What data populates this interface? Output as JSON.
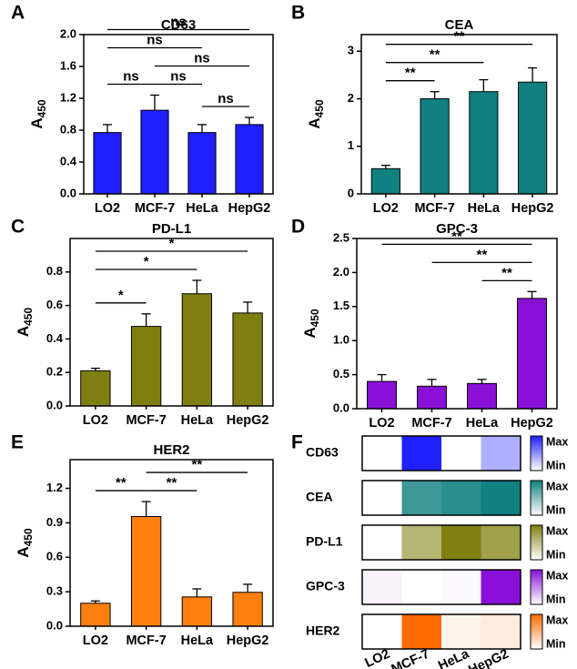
{
  "chart_data": [
    {
      "type": "bar",
      "panel": "A",
      "title": "CD63",
      "ylabel": "A",
      "ylabel_subscript": "450",
      "categories": [
        "LO2",
        "MCF-7",
        "HeLa",
        "HepG2"
      ],
      "values": [
        0.77,
        1.05,
        0.77,
        0.87
      ],
      "errors": [
        0.1,
        0.19,
        0.1,
        0.09
      ],
      "color": "#1f1fff",
      "ylim": [
        0,
        2.0
      ],
      "yticks": [
        {
          "value": 0,
          "label": "0.0"
        },
        0.4,
        0.8,
        1.2,
        1.6,
        {
          "value": 2,
          "label": "2.0"
        }
      ],
      "significance": [
        {
          "from": "HeLa",
          "to": "HepG2",
          "label": "ns"
        },
        {
          "from": "MCF-7",
          "to": "HeLa",
          "label": "ns"
        },
        {
          "from": "LO2",
          "to": "MCF-7",
          "label": "ns"
        },
        {
          "from": "MCF-7",
          "to": "HepG2",
          "label": "ns"
        },
        {
          "from": "LO2",
          "to": "HeLa",
          "label": "ns"
        },
        {
          "from": "LO2",
          "to": "HepG2",
          "label": "ns"
        }
      ]
    },
    {
      "type": "bar",
      "panel": "B",
      "title": "CEA",
      "ylabel": "A",
      "ylabel_subscript": "450",
      "categories": [
        "LO2",
        "MCF-7",
        "HeLa",
        "HepG2"
      ],
      "values": [
        0.53,
        2.0,
        2.15,
        2.35
      ],
      "errors": [
        0.07,
        0.15,
        0.25,
        0.3
      ],
      "color": "#108080",
      "ylim": [
        0,
        3.35
      ],
      "yticks": [
        0,
        1,
        2,
        3
      ],
      "significance": [
        {
          "from": "LO2",
          "to": "MCF-7",
          "label": "**"
        },
        {
          "from": "LO2",
          "to": "HeLa",
          "label": "**"
        },
        {
          "from": "LO2",
          "to": "HepG2",
          "label": "**"
        }
      ]
    },
    {
      "type": "bar",
      "panel": "C",
      "title": "PD-L1",
      "ylabel": "A",
      "ylabel_subscript": "450",
      "categories": [
        "LO2",
        "MCF-7",
        "HeLa",
        "HepG2"
      ],
      "values": [
        0.21,
        0.475,
        0.67,
        0.555
      ],
      "errors": [
        0.015,
        0.075,
        0.08,
        0.065
      ],
      "color": "#7f7f10",
      "ylim": [
        0,
        1.0
      ],
      "yticks": [
        {
          "value": 0,
          "label": "0.0"
        },
        0.2,
        0.4,
        0.6,
        0.8
      ],
      "significance": [
        {
          "from": "LO2",
          "to": "MCF-7",
          "label": "*"
        },
        {
          "from": "LO2",
          "to": "HeLa",
          "label": "*"
        },
        {
          "from": "LO2",
          "to": "HepG2",
          "label": "*"
        }
      ]
    },
    {
      "type": "bar",
      "panel": "D",
      "title": "GPC-3",
      "ylabel": "A",
      "ylabel_subscript": "450",
      "categories": [
        "LO2",
        "MCF-7",
        "HeLa",
        "HepG2"
      ],
      "values": [
        0.4,
        0.33,
        0.37,
        1.62
      ],
      "errors": [
        0.1,
        0.1,
        0.06,
        0.1
      ],
      "color": "#8a10d8",
      "ylim": [
        0,
        2.5
      ],
      "yticks": [
        {
          "value": 0,
          "label": "0.0"
        },
        0.5,
        {
          "value": 1,
          "label": "1.0"
        },
        1.5,
        {
          "value": 2,
          "label": "2.0"
        },
        2.5
      ],
      "significance": [
        {
          "from": "HeLa",
          "to": "HepG2",
          "label": "**"
        },
        {
          "from": "MCF-7",
          "to": "HepG2",
          "label": "**"
        },
        {
          "from": "LO2",
          "to": "HepG2",
          "label": "**"
        }
      ]
    },
    {
      "type": "bar",
      "panel": "E",
      "title": "HER2",
      "ylabel": "A",
      "ylabel_subscript": "450",
      "categories": [
        "LO2",
        "MCF-7",
        "HeLa",
        "HepG2"
      ],
      "values": [
        0.2,
        0.955,
        0.255,
        0.295
      ],
      "errors": [
        0.02,
        0.13,
        0.07,
        0.07
      ],
      "color": "#ff7f0e",
      "ylim": [
        0,
        1.45
      ],
      "yticks": [
        {
          "value": 0,
          "label": "0.0"
        },
        0.3,
        0.6,
        0.9,
        1.2
      ],
      "significance": [
        {
          "from": "MCF-7",
          "to": "HeLa",
          "label": "**"
        },
        {
          "from": "LO2",
          "to": "MCF-7",
          "label": "**"
        },
        {
          "from": "MCF-7",
          "to": "HepG2",
          "label": "**"
        }
      ]
    },
    {
      "type": "heatmap",
      "panel": "F",
      "rows": [
        "CD63",
        "CEA",
        "PD-L1",
        "GPC-3",
        "HER2"
      ],
      "columns": [
        "LO2",
        "MCF-7",
        "HeLa",
        "HepG2"
      ],
      "values": [
        [
          0.77,
          1.05,
          0.77,
          0.87
        ],
        [
          0.53,
          2.0,
          2.15,
          2.35
        ],
        [
          0.21,
          0.475,
          0.67,
          0.555
        ],
        [
          0.4,
          0.33,
          0.37,
          1.62
        ],
        [
          0.2,
          0.955,
          0.255,
          0.295
        ]
      ],
      "colors": [
        "#1f1fff",
        "#108080",
        "#7f7f10",
        "#8a10d8",
        "#ff6a00"
      ],
      "colorbar_labels": [
        "Max",
        "Min"
      ]
    }
  ]
}
